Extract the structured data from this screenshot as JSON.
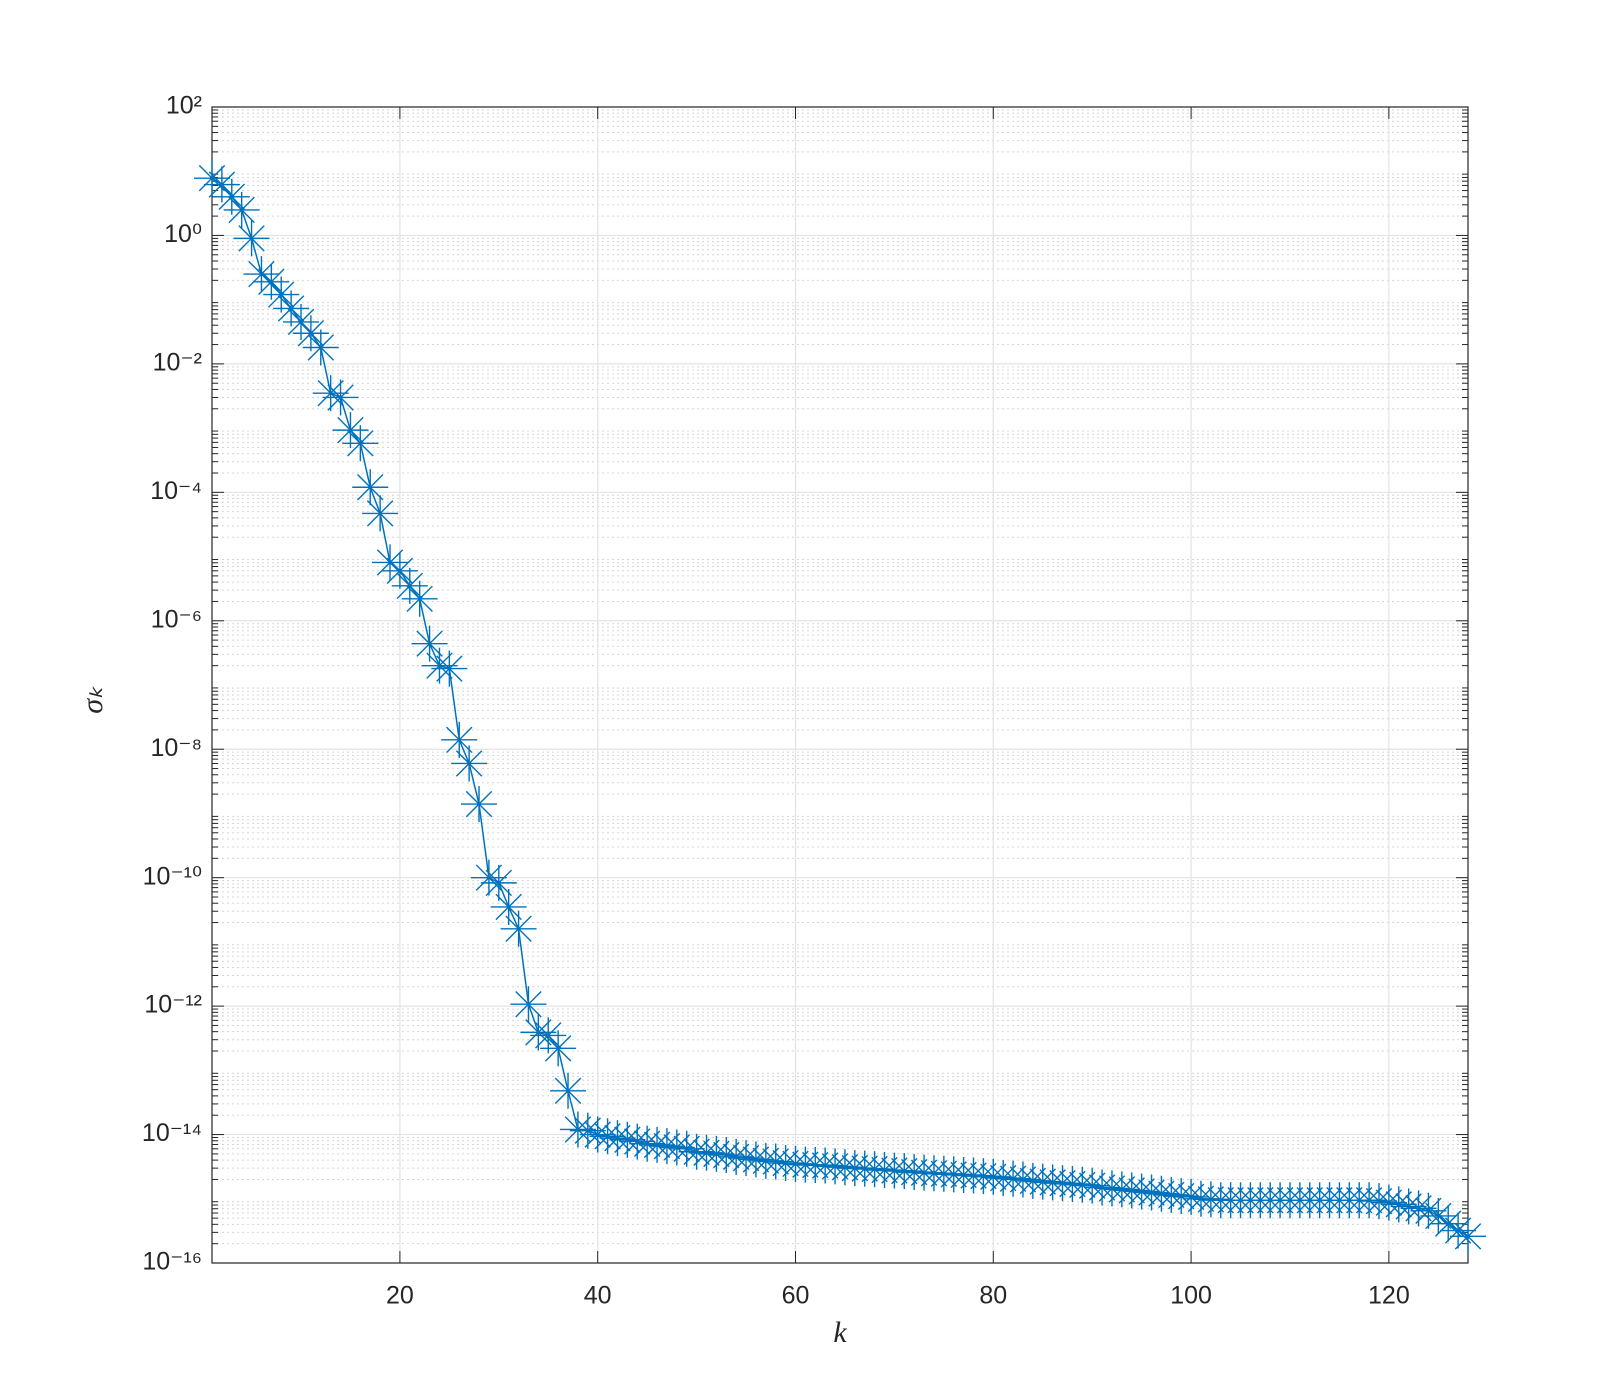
{
  "chart_data": {
    "type": "line",
    "xlabel": "k",
    "ylabel": "σₖ",
    "x": [
      1,
      2,
      3,
      4,
      5,
      6,
      7,
      8,
      9,
      10,
      11,
      12,
      13,
      14,
      15,
      16,
      17,
      18,
      19,
      20,
      21,
      22,
      23,
      24,
      25,
      26,
      27,
      28,
      29,
      30,
      31,
      32,
      33,
      34,
      35,
      36,
      37,
      38,
      39,
      40,
      41,
      42,
      43,
      44,
      45,
      46,
      47,
      48,
      49,
      50,
      51,
      52,
      53,
      54,
      55,
      56,
      57,
      58,
      59,
      60,
      61,
      62,
      63,
      64,
      65,
      66,
      67,
      68,
      69,
      70,
      71,
      72,
      73,
      74,
      75,
      76,
      77,
      78,
      79,
      80,
      81,
      82,
      83,
      84,
      85,
      86,
      87,
      88,
      89,
      90,
      91,
      92,
      93,
      94,
      95,
      96,
      97,
      98,
      99,
      100,
      101,
      102,
      103,
      104,
      105,
      106,
      107,
      108,
      109,
      110,
      111,
      112,
      113,
      114,
      115,
      116,
      117,
      118,
      119,
      120,
      121,
      122,
      123,
      124,
      125,
      126,
      127,
      128
    ],
    "series": [
      {
        "color": "#0072bd",
        "marker": "asterisk",
        "values": [
          7.8,
          6.2,
          4,
          2.5,
          0.9,
          0.25,
          0.19,
          0.12,
          0.073,
          0.045,
          0.03,
          0.018,
          0.0035,
          0.003,
          0.00093,
          0.00058,
          0.00012,
          4.7e-05,
          8.1e-06,
          6e-06,
          3.5e-06,
          2.2e-06,
          4.4e-07,
          2e-07,
          1.8e-07,
          1.4e-08,
          6e-09,
          1.4e-09,
          1e-10,
          8.3e-11,
          3.5e-11,
          1.6e-11,
          1.07e-12,
          3.9e-13,
          3.5e-13,
          2.2e-13,
          4.8e-14,
          1.2e-14,
          1.15e-14,
          1e-14,
          9.4e-15,
          8.8e-15,
          8.3e-15,
          7.8e-15,
          7.2e-15,
          6.9e-15,
          6.6e-15,
          6.3e-15,
          6e-15,
          5.4e-15,
          5.2e-15,
          5e-15,
          4.8e-15,
          4.5e-15,
          4.3e-15,
          4.1e-15,
          3.9e-15,
          3.8e-15,
          3.6e-15,
          3.5e-15,
          3.4e-15,
          3.35e-15,
          3.3e-15,
          3.2e-15,
          3.1e-15,
          3e-15,
          2.95e-15,
          2.9e-15,
          2.8e-15,
          2.75e-15,
          2.7e-15,
          2.6e-15,
          2.55e-15,
          2.5e-15,
          2.45e-15,
          2.4e-15,
          2.35e-15,
          2.3e-15,
          2.25e-15,
          2.2e-15,
          2.1e-15,
          2.05e-15,
          2e-15,
          1.9e-15,
          1.85e-15,
          1.8e-15,
          1.75e-15,
          1.7e-15,
          1.65e-15,
          1.6e-15,
          1.5e-15,
          1.45e-15,
          1.4e-15,
          1.35e-15,
          1.3e-15,
          1.25e-15,
          1.2e-15,
          1.15e-15,
          1.1e-15,
          1.07e-15,
          1e-15,
          9.8e-16,
          9.5e-16,
          9.5e-16,
          9.5e-16,
          9.5e-16,
          9.5e-16,
          9.5e-16,
          9.5e-16,
          9.5e-16,
          9.5e-16,
          9.5e-16,
          9.5e-16,
          9.5e-16,
          9.5e-16,
          9.5e-16,
          9.5e-16,
          9.5e-16,
          9.2e-16,
          8.7e-16,
          8.2e-16,
          7.6e-16,
          7.1e-16,
          6.5e-16,
          5.4e-16,
          4.1e-16,
          3.2e-16,
          2.6e-16
        ]
      }
    ],
    "xlim": [
      1,
      128
    ],
    "xticks": [
      20,
      40,
      60,
      80,
      100,
      120
    ],
    "ylim": [
      1e-16,
      100
    ],
    "ylog": true,
    "yticks": [
      {
        "value": 100,
        "label": "10²"
      },
      {
        "value": 1,
        "label": "10⁰"
      },
      {
        "value": 0.01,
        "label": "10⁻²"
      },
      {
        "value": 0.0001,
        "label": "10⁻⁴"
      },
      {
        "value": 1e-06,
        "label": "10⁻⁶"
      },
      {
        "value": 1e-08,
        "label": "10⁻⁸"
      },
      {
        "value": 1e-10,
        "label": "10⁻¹⁰"
      },
      {
        "value": 1e-12,
        "label": "10⁻¹²"
      },
      {
        "value": 1e-14,
        "label": "10⁻¹⁴"
      },
      {
        "value": 1e-16,
        "label": "10⁻¹⁶"
      }
    ],
    "grid": true,
    "minor_grid": true
  }
}
